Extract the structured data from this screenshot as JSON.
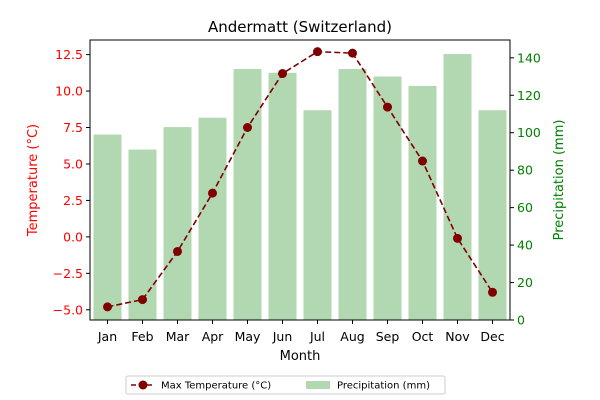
{
  "chart_data": {
    "type": "bar+line",
    "title": "Andermatt (Switzerland)",
    "xlabel": "Month",
    "categories": [
      "Jan",
      "Feb",
      "Mar",
      "Apr",
      "May",
      "Jun",
      "Jul",
      "Aug",
      "Sep",
      "Oct",
      "Nov",
      "Dec"
    ],
    "series": [
      {
        "name": "Max Temperature (°C)",
        "type": "line",
        "axis": "left",
        "color": "#800000",
        "values": [
          -4.8,
          -4.3,
          -1.0,
          3.0,
          7.5,
          11.2,
          12.7,
          12.6,
          8.9,
          5.2,
          -0.1,
          -3.8
        ]
      },
      {
        "name": "Precipitation (mm)",
        "type": "bar",
        "axis": "right",
        "color": "#b2d8b2",
        "values": [
          99,
          91,
          103,
          108,
          134,
          132,
          112,
          134,
          130,
          125,
          142,
          112
        ]
      }
    ],
    "left_axis": {
      "label": "Temperature (°C)",
      "color": "#ff0000",
      "ylim": [
        -5.7,
        13.5
      ],
      "ticks": [
        -5.0,
        -2.5,
        0.0,
        2.5,
        5.0,
        7.5,
        10.0,
        12.5
      ],
      "tick_labels": [
        "−5.0",
        "−2.5",
        "0.0",
        "2.5",
        "5.0",
        "7.5",
        "10.0",
        "12.5"
      ]
    },
    "right_axis": {
      "label": "Precipitation (mm)",
      "color": "#008000",
      "ylim": [
        0,
        149.5
      ],
      "ticks": [
        0,
        20,
        40,
        60,
        80,
        100,
        120,
        140
      ],
      "tick_labels": [
        "0",
        "20",
        "40",
        "60",
        "80",
        "100",
        "120",
        "140"
      ]
    },
    "legend": {
      "placement": "bottom-center",
      "entries": [
        "Max Temperature (°C)",
        "Precipitation (mm)"
      ]
    },
    "grid": false
  }
}
